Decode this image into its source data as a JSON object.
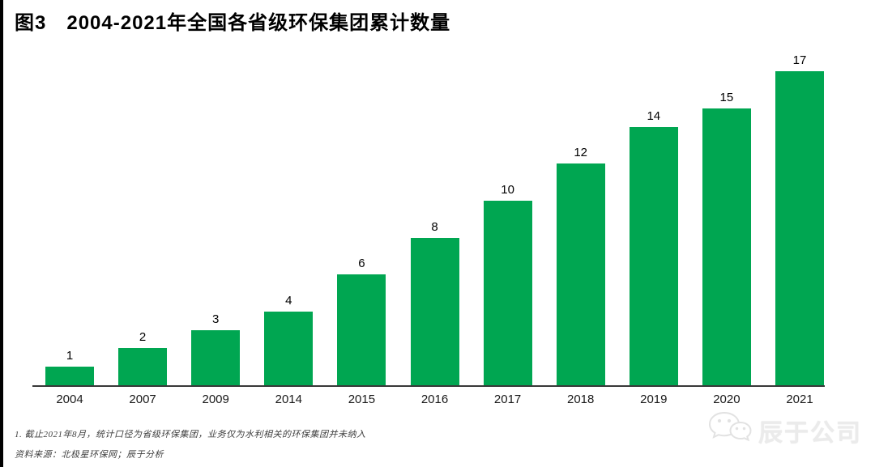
{
  "figure": {
    "label": "图3",
    "title": "图3　2004-2021年全国各省级环保集团累计数量",
    "footnote": "1. 截止2021年8月，统计口径为省级环保集团，业务仅为水利相关的环保集团并未纳入",
    "source": "资料来源：北极星环保网；辰于分析",
    "watermark_text": "辰于公司",
    "watermark_icon": "wechat-icon"
  },
  "colors": {
    "bar": "#00A651",
    "axis": "#383838",
    "value_label": "#000000",
    "x_label": "#1a1a1a",
    "watermark": "#ebebeb"
  },
  "chart_data": {
    "type": "bar",
    "title": "图3　2004-2021年全国各省级环保集团累计数量",
    "categories": [
      "2004",
      "2007",
      "2009",
      "2014",
      "2015",
      "2016",
      "2017",
      "2018",
      "2019",
      "2020",
      "2021"
    ],
    "values": [
      1,
      2,
      3,
      4,
      6,
      8,
      10,
      12,
      14,
      15,
      17
    ],
    "xlabel": "",
    "ylabel": "",
    "ylim": [
      0,
      17.9
    ],
    "grid": false,
    "legend": false,
    "value_labels": true,
    "bar_color": "#00A651"
  }
}
